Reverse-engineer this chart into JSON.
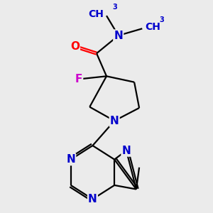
{
  "background_color": "#ebebeb",
  "bond_width": 1.6,
  "atom_colors": {
    "O": "#ff0000",
    "N": "#0000cc",
    "F": "#cc00cc",
    "C": "#000000"
  },
  "font_size_atom": 11,
  "font_size_methyl": 10
}
